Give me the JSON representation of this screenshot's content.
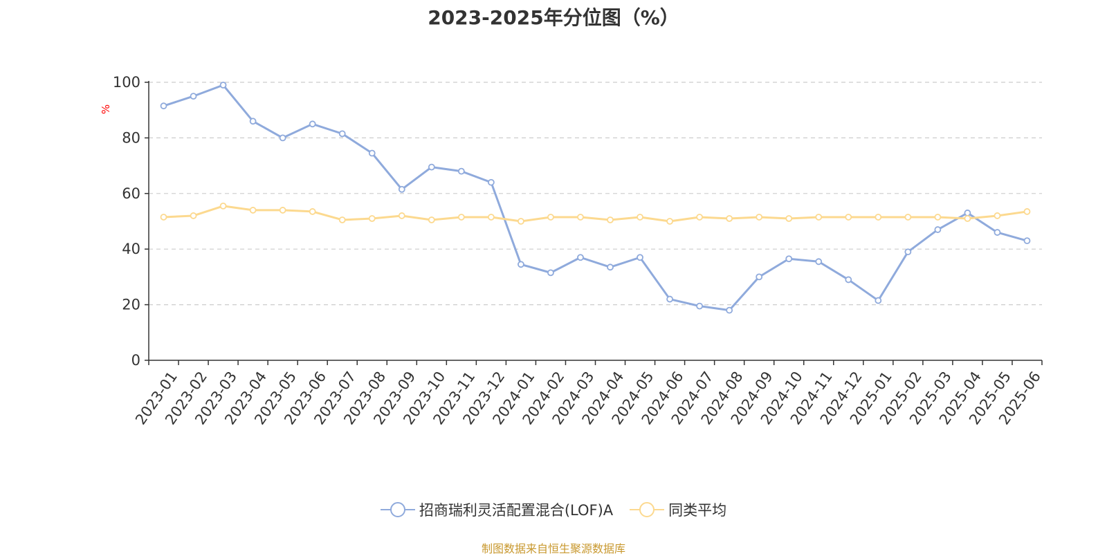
{
  "chart_data": {
    "type": "line",
    "title": "2023-2025年分位图（%）",
    "ylabel": "%",
    "xlabel": "",
    "ylim": [
      0,
      100
    ],
    "yticks": [
      0,
      20,
      40,
      60,
      80,
      100
    ],
    "grid": true,
    "legend_position": "bottom",
    "categories": [
      "2023-01",
      "2023-02",
      "2023-03",
      "2023-04",
      "2023-05",
      "2023-06",
      "2023-07",
      "2023-08",
      "2023-09",
      "2023-10",
      "2023-11",
      "2023-12",
      "2024-01",
      "2024-02",
      "2024-03",
      "2024-04",
      "2024-05",
      "2024-06",
      "2024-07",
      "2024-08",
      "2024-09",
      "2024-10",
      "2024-11",
      "2024-12",
      "2025-01",
      "2025-02",
      "2025-03",
      "2025-04",
      "2025-05",
      "2025-06"
    ],
    "series": [
      {
        "name": "招商瑞利灵活配置混合(LOF)A",
        "color": "#8faadc",
        "values": [
          91.5,
          95,
          99,
          86,
          80,
          85,
          81.5,
          74.5,
          61.5,
          69.5,
          68,
          64,
          34.5,
          31.5,
          37,
          33.5,
          37,
          22,
          19.5,
          18,
          30,
          36.5,
          35.5,
          29,
          21.5,
          39,
          47,
          53,
          46,
          43
        ]
      },
      {
        "name": "同类平均",
        "color": "#fcd98f",
        "values": [
          51.5,
          52,
          55.5,
          54,
          54,
          53.5,
          50.5,
          51,
          52,
          50.5,
          51.5,
          51.5,
          50,
          51.5,
          51.5,
          50.5,
          51.5,
          50,
          51.5,
          51,
          51.5,
          51,
          51.5,
          51.5,
          51.5,
          51.5,
          51.5,
          51,
          52,
          53.5
        ]
      }
    ]
  },
  "footer": {
    "source": "制图数据来自恒生聚源数据库"
  },
  "colors": {
    "grid": "#cccccc",
    "axis": "#333333",
    "unit_label": "#ff0000",
    "source_text": "#c8982e"
  }
}
